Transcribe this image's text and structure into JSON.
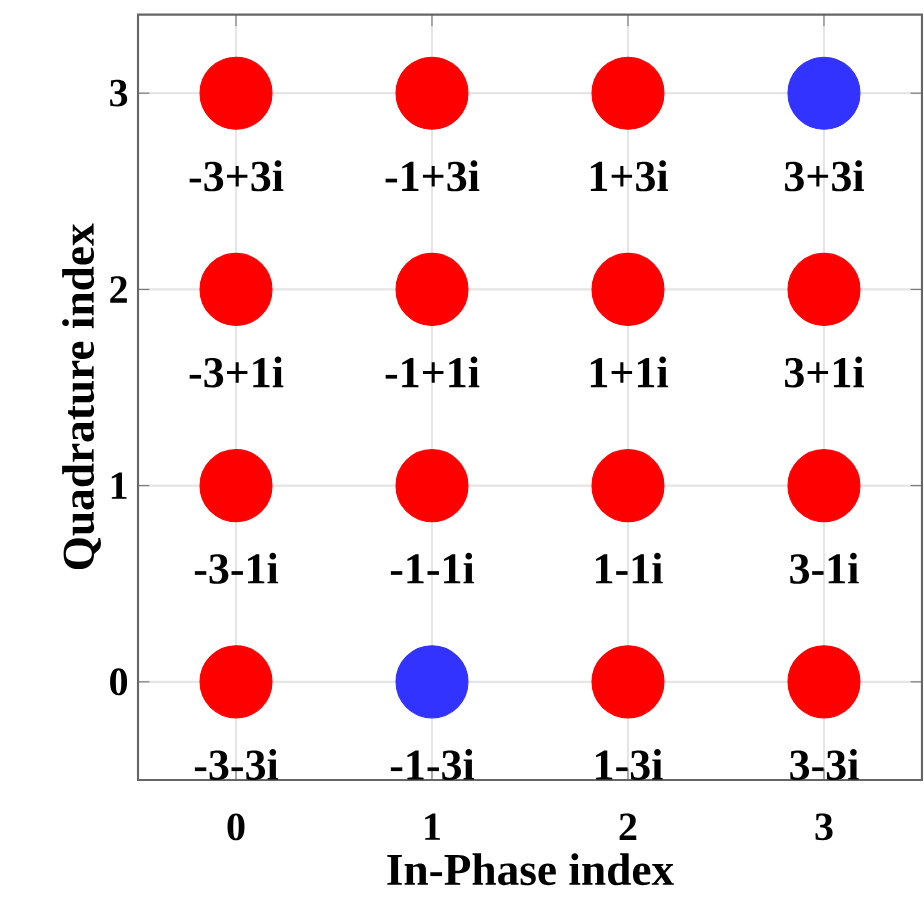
{
  "chart_data": {
    "type": "scatter",
    "xlabel": "In-Phase index",
    "ylabel": "Quadrature index",
    "xlim": [
      -0.5,
      3.5
    ],
    "ylim": [
      -0.5,
      3.4
    ],
    "xticks": [
      0,
      1,
      2,
      3
    ],
    "yticks": [
      0,
      1,
      2,
      3
    ],
    "grid": true,
    "series": [
      {
        "color": "#ff0000",
        "x": [
          0,
          1,
          2,
          0,
          1,
          2,
          3,
          0,
          1,
          2,
          3,
          0,
          2,
          3
        ],
        "values": [
          3,
          3,
          3,
          2,
          2,
          2,
          2,
          1,
          1,
          1,
          1,
          0,
          0,
          0
        ]
      },
      {
        "color": "#3333ff",
        "x": [
          3,
          1
        ],
        "values": [
          3,
          0
        ]
      }
    ],
    "annotations": [
      {
        "text": "-3+3i",
        "x": 0,
        "y": 3
      },
      {
        "text": "-1+3i",
        "x": 1,
        "y": 3
      },
      {
        "text": "1+3i",
        "x": 2,
        "y": 3
      },
      {
        "text": "3+3i",
        "x": 3,
        "y": 3
      },
      {
        "text": "-3+1i",
        "x": 0,
        "y": 2
      },
      {
        "text": "-1+1i",
        "x": 1,
        "y": 2
      },
      {
        "text": "1+1i",
        "x": 2,
        "y": 2
      },
      {
        "text": "3+1i",
        "x": 3,
        "y": 2
      },
      {
        "text": "-3-1i",
        "x": 0,
        "y": 1
      },
      {
        "text": "-1-1i",
        "x": 1,
        "y": 1
      },
      {
        "text": "1-1i",
        "x": 2,
        "y": 1
      },
      {
        "text": "3-1i",
        "x": 3,
        "y": 1
      },
      {
        "text": "-3-3i",
        "x": 0,
        "y": 0
      },
      {
        "text": "-1-3i",
        "x": 1,
        "y": 0
      },
      {
        "text": "1-3i",
        "x": 2,
        "y": 0
      },
      {
        "text": "3-3i",
        "x": 3,
        "y": 0
      }
    ]
  }
}
